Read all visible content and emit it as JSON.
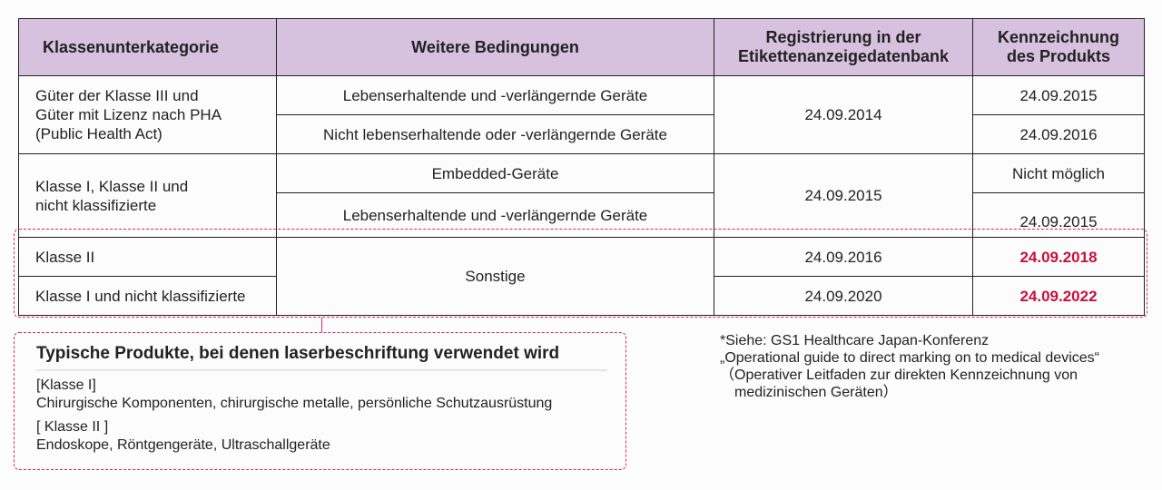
{
  "table": {
    "headers": [
      "Klassenunterkategorie",
      "Weitere Bedingungen",
      "Registrierung in der Etikettenanzeigedatenbank",
      "Kennzeichnung des Produkts"
    ],
    "header_lines": {
      "reg1": "Registrierung in der",
      "reg2": "Etikettenanzeigedatenbank",
      "ken1": "Kennzeichnung",
      "ken2": "des Produkts"
    },
    "group1": {
      "category_lines": [
        "Güter der Klasse III und",
        "Güter mit Lizenz nach PHA",
        "(Public Health Act)"
      ],
      "conditions": [
        "Lebenserhaltende und -verlängernde Geräte",
        "Nicht lebenserhaltende oder -verlängernde Geräte"
      ],
      "registration": "24.09.2014",
      "labeling": [
        "24.09.2015",
        "24.09.2016"
      ]
    },
    "group2": {
      "category_lines": [
        "Klasse I, Klasse II und",
        "nicht  klassifizierte"
      ],
      "conditions": [
        "Embedded-Geräte",
        "Lebenserhaltende und -verlängernde Geräte"
      ],
      "registration": "24.09.2015",
      "labeling": [
        "Nicht möglich",
        "24.09.2015"
      ]
    },
    "group3": {
      "categories": [
        "Klasse II",
        "Klasse I und nicht klassifizierte"
      ],
      "condition": "Sonstige",
      "registration": [
        "24.09.2016",
        "24.09.2020"
      ],
      "labeling": [
        "24.09.2018",
        "24.09.2022"
      ]
    }
  },
  "colors": {
    "header_bg": "#d6c1de",
    "highlight": "#c8103c",
    "dashed_border": "#d6285a"
  },
  "products_box": {
    "title": "Typische Produkte, bei denen laserbeschriftung verwendet wird",
    "class1_label": "[Klasse I]",
    "class1_items": "Chirurgische Komponenten, chirurgische metalle, persönliche Schutzausrüstung",
    "class2_label": "[ Klasse II ]",
    "class2_items": "Endoskope, Röntgengeräte, Ultraschallgeräte"
  },
  "footnote": {
    "lines": [
      "*Siehe: GS1 Healthcare Japan-Konferenz",
      "„Operational guide to direct marking on to medical devices“",
      "（Operativer Leitfaden zur direkten Kennzeichnung von",
      "　medizinischen Geräten）"
    ]
  }
}
